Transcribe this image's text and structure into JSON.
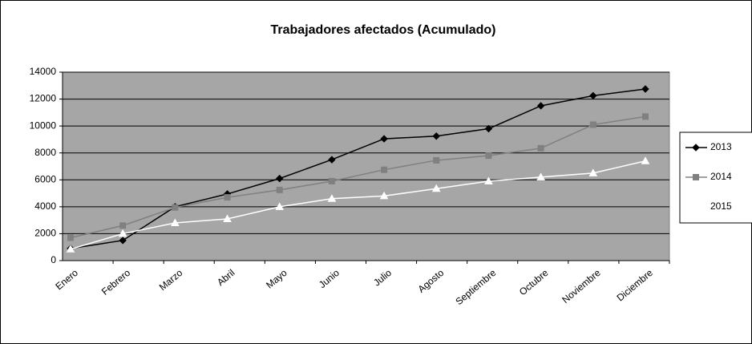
{
  "chart_data": {
    "type": "line",
    "title": "Trabajadores afectados (Acumulado)",
    "categories": [
      "Enero",
      "Febrero",
      "Marzo",
      "Abril",
      "Mayo",
      "Junio",
      "Julio",
      "Agosto",
      "Septiembre",
      "Octubre",
      "Noviembre",
      "Diciembre"
    ],
    "series": [
      {
        "name": "2013",
        "color": "#000000",
        "values": [
          900,
          1500,
          4000,
          4950,
          6100,
          7500,
          9050,
          9250,
          9800,
          11500,
          12250,
          12750
        ]
      },
      {
        "name": "2014",
        "color": "#808080",
        "values": [
          1700,
          2600,
          3950,
          4700,
          5250,
          5900,
          6750,
          7450,
          7800,
          8350,
          10100,
          10700
        ]
      },
      {
        "name": "2015",
        "color": "#ffffff",
        "values": [
          850,
          2000,
          2800,
          3100,
          4000,
          4600,
          4800,
          5350,
          5900,
          6200,
          6500,
          7400
        ]
      }
    ],
    "ylim": [
      0,
      14000
    ],
    "yticks": [
      0,
      2000,
      4000,
      6000,
      8000,
      10000,
      12000,
      14000
    ],
    "grid": true,
    "legend": "right"
  }
}
